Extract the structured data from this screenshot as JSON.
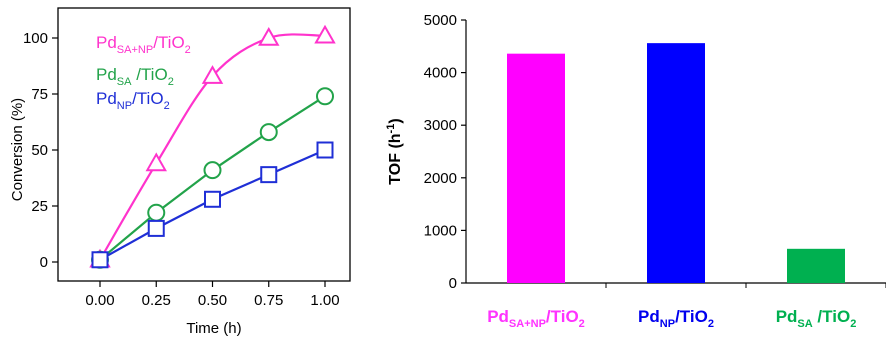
{
  "chart_data": [
    {
      "type": "line",
      "xlabel": "Time (h)",
      "ylabel": "Conversion (%)",
      "xlim": [
        0,
        1
      ],
      "ylim": [
        0,
        100
      ],
      "xticks": [
        "0.00",
        "0.25",
        "0.50",
        "0.75",
        "1.00"
      ],
      "yticks": [
        "0",
        "25",
        "50",
        "75",
        "100"
      ],
      "series": [
        {
          "name": "PdSA+NP/TiO2",
          "name_parts": {
            "base": "Pd",
            "sub": "SA+NP",
            "rest": "/TiO",
            "sub2": "2"
          },
          "color": "#ff33cc",
          "marker": "triangle",
          "x": [
            0,
            0.25,
            0.5,
            0.75,
            1.0
          ],
          "y": [
            1,
            44,
            83,
            100,
            101
          ]
        },
        {
          "name": "PdSA /TiO2",
          "name_parts": {
            "base": "Pd",
            "sub": "SA",
            "rest": " /TiO",
            "sub2": "2"
          },
          "color": "#22a34a",
          "marker": "circle",
          "x": [
            0,
            0.25,
            0.5,
            0.75,
            1.0
          ],
          "y": [
            1,
            22,
            41,
            58,
            74
          ]
        },
        {
          "name": "PdNP/TiO2",
          "name_parts": {
            "base": "Pd",
            "sub": "NP",
            "rest": "/TiO",
            "sub2": "2"
          },
          "color": "#1f2fd6",
          "marker": "square",
          "x": [
            0,
            0.25,
            0.5,
            0.75,
            1.0
          ],
          "y": [
            1,
            15,
            28,
            39,
            50
          ]
        }
      ],
      "legend": "top-left",
      "grid": false
    },
    {
      "type": "bar",
      "ylabel": "TOF (h-1)",
      "ylabel_parts": {
        "base": "TOF (h",
        "sup": "-1",
        "rest": ")"
      },
      "ylim": [
        0,
        5000
      ],
      "yticks": [
        "0",
        "1000",
        "2000",
        "3000",
        "4000",
        "5000"
      ],
      "categories": [
        "PdSA+NP/TiO2",
        "PdNP/TiO2",
        "PdSA /TiO2"
      ],
      "category_parts": [
        {
          "base": "Pd",
          "sub": "SA+NP",
          "rest": "/TiO",
          "sub2": "2",
          "color": "#ff33ff"
        },
        {
          "base": "Pd",
          "sub": "NP",
          "rest": "/TiO",
          "sub2": "2",
          "color": "#0000ee"
        },
        {
          "base": "Pd",
          "sub": "SA",
          "rest": " /TiO",
          "sub2": "2",
          "color": "#00b050"
        }
      ],
      "values": [
        4360,
        4560,
        650
      ],
      "bar_colors": [
        "#ff00ff",
        "#0000ff",
        "#00b050"
      ],
      "grid": false
    }
  ]
}
